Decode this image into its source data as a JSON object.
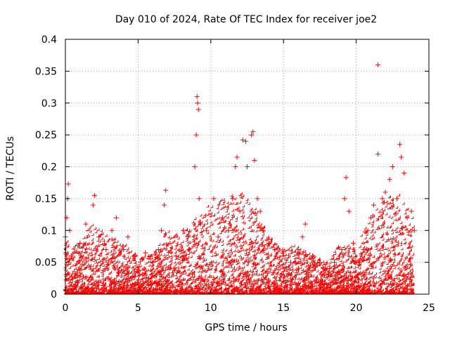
{
  "chart_data": {
    "type": "scatter",
    "title": "Day 010 of 2024, Rate Of TEC Index for receiver joe2",
    "xlabel": "GPS time / hours",
    "ylabel": "ROTI / TECUs",
    "xlim": [
      0,
      25
    ],
    "ylim": [
      0,
      0.4
    ],
    "grid": true,
    "marker": "+",
    "color": "#ff0000",
    "x_ticks": [
      0,
      5,
      10,
      15,
      20,
      25
    ],
    "x_tick_labels": [
      "0",
      "5",
      "10",
      "15",
      "20",
      "25"
    ],
    "y_ticks": [
      0,
      0.05,
      0.1,
      0.15,
      0.2,
      0.25,
      0.3,
      0.35,
      0.4
    ],
    "y_tick_labels": [
      "0",
      "0.05",
      "0.1",
      "0.15",
      "0.2",
      "0.25",
      "0.3",
      "0.35",
      "0.4"
    ],
    "series": [
      {
        "name": "ROTI",
        "points": [
          [
            0.0,
            0.09
          ],
          [
            0.1,
            0.12
          ],
          [
            0.15,
            0.15
          ],
          [
            0.2,
            0.173
          ],
          [
            0.3,
            0.1
          ],
          [
            0.4,
            0.06
          ],
          [
            1.0,
            0.08
          ],
          [
            1.4,
            0.11
          ],
          [
            1.9,
            0.14
          ],
          [
            2.0,
            0.155
          ],
          [
            2.3,
            0.09
          ],
          [
            2.8,
            0.07
          ],
          [
            3.2,
            0.1
          ],
          [
            3.5,
            0.12
          ],
          [
            4.0,
            0.07
          ],
          [
            4.3,
            0.09
          ],
          [
            4.8,
            0.06
          ],
          [
            5.5,
            0.065
          ],
          [
            6.0,
            0.05
          ],
          [
            6.4,
            0.07
          ],
          [
            6.6,
            0.1
          ],
          [
            6.8,
            0.14
          ],
          [
            6.9,
            0.163
          ],
          [
            7.2,
            0.08
          ],
          [
            7.6,
            0.06
          ],
          [
            8.1,
            0.1
          ],
          [
            8.5,
            0.07
          ],
          [
            8.9,
            0.2
          ],
          [
            9.0,
            0.25
          ],
          [
            9.05,
            0.31
          ],
          [
            9.1,
            0.3
          ],
          [
            9.15,
            0.29
          ],
          [
            9.2,
            0.15
          ],
          [
            9.3,
            0.11
          ],
          [
            9.7,
            0.1
          ],
          [
            10.2,
            0.15
          ],
          [
            10.5,
            0.09
          ],
          [
            10.8,
            0.12
          ],
          [
            11.2,
            0.1
          ],
          [
            11.5,
            0.15
          ],
          [
            11.7,
            0.2
          ],
          [
            11.8,
            0.215
          ],
          [
            12.0,
            0.13
          ],
          [
            12.2,
            0.242
          ],
          [
            12.4,
            0.24
          ],
          [
            12.5,
            0.2
          ],
          [
            12.8,
            0.25
          ],
          [
            12.9,
            0.255
          ],
          [
            13.0,
            0.21
          ],
          [
            13.2,
            0.15
          ],
          [
            13.4,
            0.13
          ],
          [
            13.6,
            0.1
          ],
          [
            14.0,
            0.08
          ],
          [
            14.4,
            0.07
          ],
          [
            15.0,
            0.06
          ],
          [
            15.5,
            0.05
          ],
          [
            16.0,
            0.07
          ],
          [
            16.3,
            0.09
          ],
          [
            16.5,
            0.11
          ],
          [
            17.0,
            0.06
          ],
          [
            17.5,
            0.05
          ],
          [
            18.0,
            0.04
          ],
          [
            18.5,
            0.05
          ],
          [
            19.0,
            0.07
          ],
          [
            19.2,
            0.15
          ],
          [
            19.3,
            0.183
          ],
          [
            19.5,
            0.13
          ],
          [
            19.8,
            0.08
          ],
          [
            20.2,
            0.05
          ],
          [
            20.5,
            0.07
          ],
          [
            20.8,
            0.1
          ],
          [
            21.0,
            0.12
          ],
          [
            21.2,
            0.14
          ],
          [
            21.5,
            0.22
          ],
          [
            21.5,
            0.36
          ],
          [
            21.8,
            0.15
          ],
          [
            22.0,
            0.16
          ],
          [
            22.3,
            0.18
          ],
          [
            22.5,
            0.2
          ],
          [
            22.8,
            0.15
          ],
          [
            23.0,
            0.235
          ],
          [
            23.1,
            0.215
          ],
          [
            23.3,
            0.19
          ],
          [
            23.5,
            0.12
          ],
          [
            23.8,
            0.13
          ],
          [
            24.0,
            0.1
          ]
        ]
      }
    ]
  }
}
